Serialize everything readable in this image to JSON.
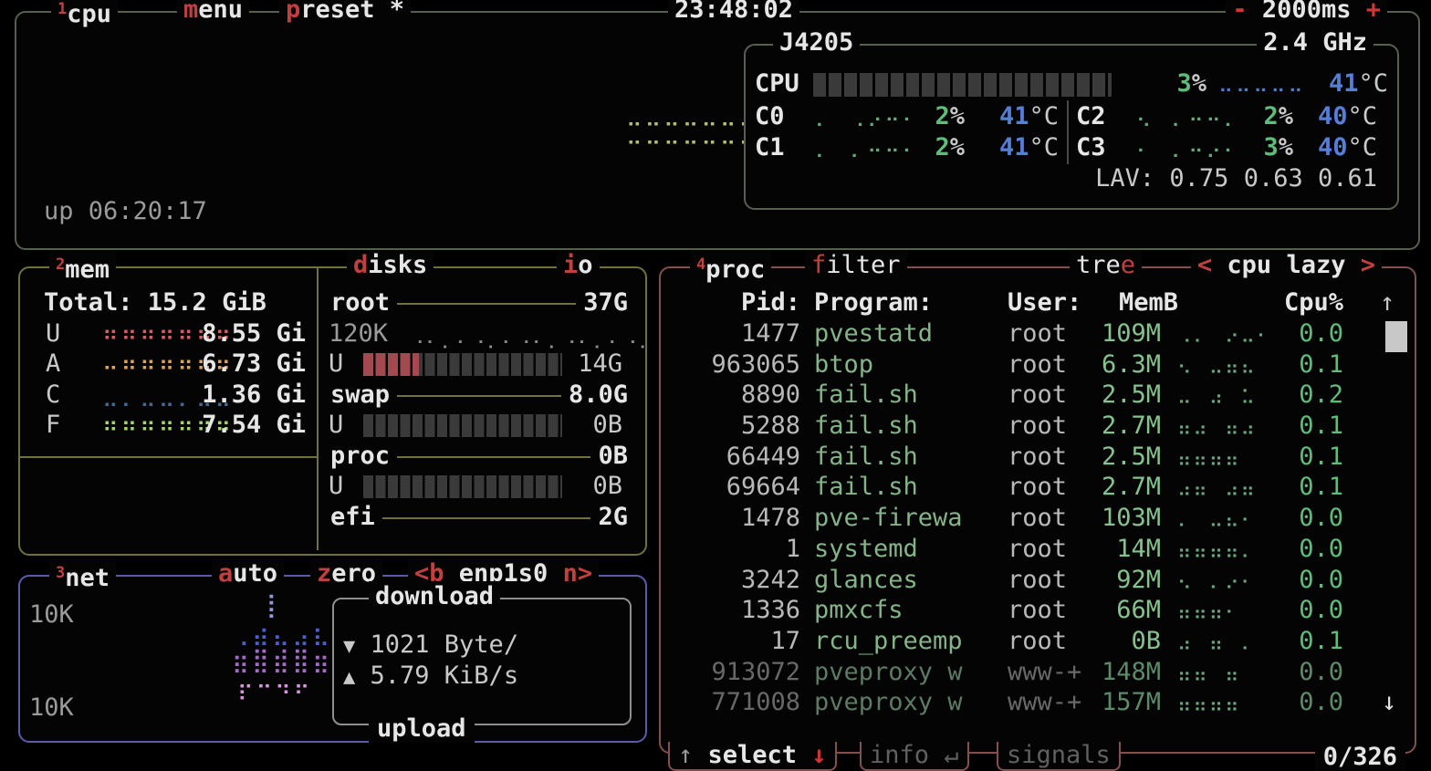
{
  "accent_colors": {
    "red": "#c24040",
    "green": "#5fbd7c",
    "blue": "#557fd6",
    "mem_used": "#d45d68",
    "mem_available": "#dda356",
    "mem_cached": "#47688f",
    "mem_free": "#a4d470",
    "net_down": "#4d5ed0",
    "net_up": "#a46cc9"
  },
  "header": {
    "num": "1",
    "title": "cpu",
    "menu_hot": "m",
    "menu_rest": "enu",
    "preset_hot": "p",
    "preset_rest": "reset *",
    "time": "23:48:02",
    "minus": "-",
    "interval": "2000ms",
    "plus": "+"
  },
  "cpu": {
    "model": "J4205",
    "freq": "2.4 GHz",
    "label": "CPU",
    "total_pct": "3",
    "pct_sym": "%",
    "total_temp": "41",
    "temp_sym": "°C",
    "meter_pct": 0,
    "mini_graph_row1": "⠒⠒⠒⠒⠒⠒⠒⠒",
    "mini_graph_row2": "⠒⠒⠒⠒⠒⠒⠒⠒",
    "total_graph": "⠒⠒⠒⠒⠒",
    "cores": [
      {
        "name": "C0",
        "graph": "⠄⠀⠠⠔⠒⠂",
        "pct": "2",
        "temp": "41"
      },
      {
        "name": "C1",
        "graph": "⠄⠀⠄⠒⠒⠂",
        "pct": "2",
        "temp": "41"
      },
      {
        "name": "C2",
        "graph": "⠢⠀⠄⠒⠒⠄",
        "pct": "2",
        "temp": "40"
      },
      {
        "name": "C3",
        "graph": "⠂⠀⠄⠒⠔⠂",
        "pct": "3",
        "temp": "40"
      }
    ],
    "lav": "LAV: 0.75 0.63 0.61",
    "uptime": "up 06:20:17"
  },
  "mem": {
    "num": "2",
    "title": "mem",
    "total": "Total: 15.2 GiB",
    "rows": [
      {
        "letter": "U",
        "value": "8.55 Gi",
        "graph": "⠛⠛⠛⠛⠛⠛⠛"
      },
      {
        "letter": "A",
        "value": "6.73 Gi",
        "graph": "⠒⠛⠛⠛⠛⠛⠛"
      },
      {
        "letter": "C",
        "value": "1.36 Gi",
        "graph": "⠤⠄⠤⠤⠄⠤⠤"
      },
      {
        "letter": "F",
        "value": "7.54 Gi",
        "graph": "⠛⠛⠛⠛⠛⠛⠛"
      }
    ]
  },
  "disks": {
    "title_hot": "d",
    "title_rest": "isks",
    "io_hot": "i",
    "io_rest": "o",
    "root": {
      "name": "root",
      "size": "37G",
      "io_rate": "120K",
      "io_graph": "⠐⠂⠄⠂⠐⠄⠂⠐⠂⠄⠐⠂⠄⠂⠐⠄",
      "used_label": "U",
      "used": "14G",
      "used_percent": 28
    },
    "swap": {
      "name": "swap",
      "size": "8.0G",
      "used_label": "U",
      "used": "0B",
      "used_percent": 0
    },
    "proc": {
      "name": "proc",
      "size": "0B",
      "used_label": "U",
      "used": "0B",
      "used_percent": 0
    },
    "efi": {
      "name": "efi",
      "size": "2G"
    }
  },
  "net": {
    "num": "3",
    "title": "net",
    "auto_hot": "a",
    "auto_rest": "uto",
    "zero_hot": "z",
    "zero_rest": "ero",
    "prev_btn": "<b",
    "iface": "enp1s0",
    "next_btn": "n>",
    "scale_top": "10K",
    "scale_bottom": "10K",
    "download_label": "download",
    "upload_label": "upload",
    "down_arrow": "▼",
    "down_value": "1021 Byte/",
    "up_arrow": "▲",
    "up_value": "5.79 KiB/s",
    "graph_spike": "⢸",
    "graph_down": "⢀⣴⣄⣠⣆",
    "graph_up": "⣶⣿⣾⣿⣶",
    "graph_up2": "⡖⠒⠲⠖"
  },
  "proc": {
    "num": "4",
    "title": "proc",
    "filter_hot": "f",
    "filter_rest": "ilter",
    "tree_pre": "tre",
    "tree_hot": "e",
    "nav_left": "<",
    "nav_label": "cpu lazy",
    "nav_right": ">",
    "headers": {
      "pid": "Pid:",
      "program": "Program:",
      "user": "User:",
      "mem": "MemB",
      "cpu": "Cpu%",
      "sort_arrow": "↑"
    },
    "rows": [
      {
        "pid": "1477",
        "program": "pvestatd",
        "user": "root",
        "mem": "109M",
        "graph": "⠠⠄⠀⠔⠤⠂",
        "cpu": "0.0"
      },
      {
        "pid": "963065",
        "program": "btop",
        "user": "root",
        "mem": "6.3M",
        "graph": "⠢⠀⠤⠶⠦",
        "cpu": "0.1"
      },
      {
        "pid": "8890",
        "program": "fail.sh",
        "user": "root",
        "mem": "2.5M",
        "graph": "⠤⠀⠴⠀⠥",
        "cpu": "0.2"
      },
      {
        "pid": "5288",
        "program": "fail.sh",
        "user": "root",
        "mem": "2.7M",
        "graph": "⠶⠴⠀⠶⠴",
        "cpu": "0.1"
      },
      {
        "pid": "66449",
        "program": "fail.sh",
        "user": "root",
        "mem": "2.5M",
        "graph": "⠶⠶⠶⠶",
        "cpu": "0.1"
      },
      {
        "pid": "69664",
        "program": "fail.sh",
        "user": "root",
        "mem": "2.7M",
        "graph": "⠴⠶⠀⠴⠶",
        "cpu": "0.1"
      },
      {
        "pid": "1478",
        "program": "pve-firewa",
        "user": "root",
        "mem": "103M",
        "graph": "⠄⠀⠤⠦⠂",
        "cpu": "0.0"
      },
      {
        "pid": "1",
        "program": "systemd",
        "user": "root",
        "mem": "14M",
        "graph": "⠶⠶⠶⠶⠄",
        "cpu": "0.0"
      },
      {
        "pid": "3242",
        "program": "glances",
        "user": "root",
        "mem": "92M",
        "graph": "⠢⠀⠄⠔⠂",
        "cpu": "0.0"
      },
      {
        "pid": "1336",
        "program": "pmxcfs",
        "user": "root",
        "mem": "66M",
        "graph": "⠶⠶⠶⠂",
        "cpu": "0.0"
      },
      {
        "pid": "17",
        "program": "rcu_preemp",
        "user": "root",
        "mem": "0B",
        "graph": "⠴⠀⠶⠀⠄",
        "cpu": "0.1"
      },
      {
        "pid": "913072",
        "program": "pveproxy w",
        "user": "www-+",
        "mem": "148M",
        "graph": "⠶⠶⠀⠶",
        "cpu": "0.0",
        "dim": true
      },
      {
        "pid": "771008",
        "program": "pveproxy w",
        "user": "www-+",
        "mem": "157M",
        "graph": "⠶⠶⠶⠶",
        "cpu": "0.0",
        "dim": true
      }
    ],
    "scroll_up": "↑",
    "scroll_down": "↓",
    "footer": {
      "up": "↑",
      "select": "select",
      "down": "↓",
      "info": "info",
      "enter": "↵",
      "signals": "signals",
      "count": "0/326"
    }
  }
}
